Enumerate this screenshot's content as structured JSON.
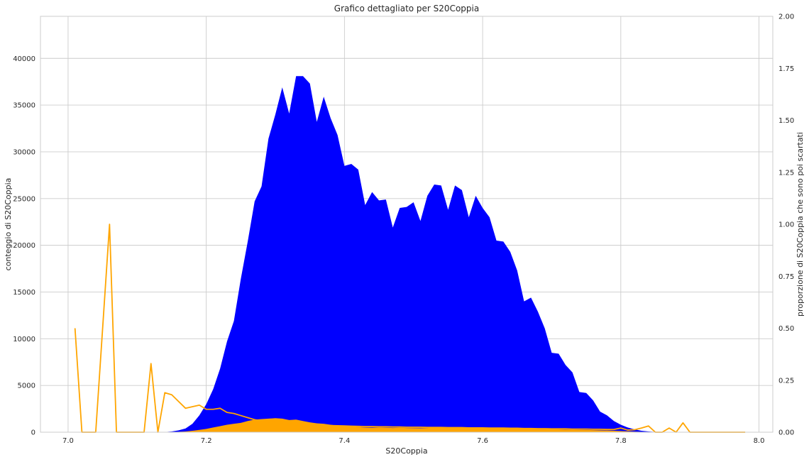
{
  "chart_data": {
    "type": "area",
    "title": "Grafico dettagliato per S20Coppia",
    "xlabel": "S20Coppia",
    "ylabel": "conteggio di S20Coppia",
    "y2label": "proporzione di S20Coppia che sono poi scartati",
    "xlim": [
      6.96,
      8.02
    ],
    "ylim": [
      0,
      44500
    ],
    "y2lim": [
      0,
      2.0
    ],
    "x_ticks": [
      "7.0",
      "7.2",
      "7.4",
      "7.6",
      "7.8",
      "8.0"
    ],
    "y_ticks": [
      "0",
      "5000",
      "10000",
      "15000",
      "20000",
      "25000",
      "30000",
      "35000",
      "40000"
    ],
    "y2_ticks": [
      "0.00",
      "0.25",
      "0.50",
      "0.75",
      "1.00",
      "1.25",
      "1.50",
      "1.75",
      "2.00"
    ],
    "grid": true,
    "series": [
      {
        "kind": "area",
        "axis": "left",
        "color": "#0000ff",
        "x": [
          7.14,
          7.15,
          7.16,
          7.17,
          7.18,
          7.19,
          7.2,
          7.21,
          7.22,
          7.23,
          7.24,
          7.25,
          7.26,
          7.27,
          7.28,
          7.29,
          7.3,
          7.31,
          7.32,
          7.33,
          7.34,
          7.35,
          7.36,
          7.37,
          7.38,
          7.39,
          7.4,
          7.41,
          7.42,
          7.43,
          7.44,
          7.45,
          7.46,
          7.47,
          7.48,
          7.49,
          7.5,
          7.51,
          7.52,
          7.53,
          7.54,
          7.55,
          7.56,
          7.57,
          7.58,
          7.59,
          7.6,
          7.61,
          7.62,
          7.63,
          7.64,
          7.65,
          7.66,
          7.67,
          7.68,
          7.69,
          7.7,
          7.71,
          7.72,
          7.73,
          7.74,
          7.75,
          7.76,
          7.77,
          7.78,
          7.79,
          7.8,
          7.81,
          7.82,
          7.83,
          7.84,
          7.85
        ],
        "values": [
          20,
          80,
          200,
          400,
          900,
          1800,
          3000,
          4600,
          6800,
          9700,
          11900,
          16400,
          20400,
          24700,
          26300,
          31400,
          34000,
          36900,
          34100,
          38100,
          38100,
          37300,
          33200,
          35900,
          33600,
          31800,
          28500,
          28700,
          28100,
          24300,
          25700,
          24800,
          24900,
          21900,
          24000,
          24100,
          24600,
          22600,
          25300,
          26500,
          26400,
          23800,
          26400,
          25900,
          23000,
          25300,
          24000,
          23000,
          20500,
          20400,
          19300,
          17300,
          14000,
          14400,
          12900,
          11100,
          8500,
          8400,
          7200,
          6400,
          4300,
          4200,
          3400,
          2200,
          1800,
          1200,
          800,
          500,
          300,
          150,
          80,
          30
        ]
      },
      {
        "kind": "area",
        "axis": "left",
        "color": "#ffa500",
        "x": [
          7.14,
          7.15,
          7.16,
          7.17,
          7.18,
          7.19,
          7.2,
          7.21,
          7.22,
          7.23,
          7.24,
          7.25,
          7.26,
          7.27,
          7.28,
          7.29,
          7.3,
          7.31,
          7.32,
          7.33,
          7.34,
          7.35,
          7.36,
          7.37,
          7.38,
          7.39,
          7.4,
          7.41,
          7.42,
          7.43,
          7.44,
          7.45,
          7.46,
          7.47,
          7.48,
          7.49,
          7.5,
          7.51,
          7.52,
          7.53,
          7.54,
          7.55,
          7.56,
          7.57,
          7.58,
          7.59,
          7.6,
          7.61,
          7.62,
          7.63,
          7.64,
          7.65,
          7.66,
          7.67,
          7.68,
          7.69,
          7.7,
          7.71,
          7.72,
          7.73,
          7.74,
          7.75,
          7.76,
          7.77,
          7.78,
          7.79,
          7.8,
          7.81,
          7.82,
          7.83,
          7.84,
          7.85
        ],
        "values": [
          5,
          20,
          40,
          80,
          150,
          250,
          350,
          500,
          650,
          800,
          900,
          1000,
          1200,
          1350,
          1400,
          1450,
          1500,
          1450,
          1300,
          1350,
          1200,
          1050,
          950,
          900,
          800,
          700,
          650,
          600,
          550,
          500,
          480,
          500,
          480,
          450,
          470,
          450,
          440,
          430,
          450,
          480,
          470,
          440,
          480,
          470,
          450,
          440,
          430,
          420,
          400,
          400,
          390,
          380,
          350,
          340,
          330,
          320,
          300,
          290,
          270,
          260,
          250,
          240,
          220,
          200,
          180,
          150,
          120,
          90,
          60,
          40,
          20,
          10
        ]
      },
      {
        "kind": "line",
        "axis": "right",
        "color": "#ffa500",
        "x": [
          7.01,
          7.02,
          7.04,
          7.06,
          7.07,
          7.11,
          7.12,
          7.13,
          7.14,
          7.15,
          7.17,
          7.19,
          7.2,
          7.21,
          7.22,
          7.23,
          7.24,
          7.25,
          7.26,
          7.27,
          7.28,
          7.29,
          7.3,
          7.31,
          7.32,
          7.33,
          7.34,
          7.35,
          7.36,
          7.37,
          7.38,
          7.39,
          7.4,
          7.41,
          7.42,
          7.43,
          7.44,
          7.45,
          7.46,
          7.47,
          7.48,
          7.49,
          7.5,
          7.51,
          7.52,
          7.53,
          7.54,
          7.55,
          7.56,
          7.57,
          7.58,
          7.59,
          7.6,
          7.61,
          7.62,
          7.63,
          7.64,
          7.65,
          7.66,
          7.67,
          7.68,
          7.69,
          7.7,
          7.71,
          7.72,
          7.73,
          7.74,
          7.75,
          7.76,
          7.77,
          7.78,
          7.79,
          7.8,
          7.81,
          7.82,
          7.83,
          7.84,
          7.85,
          7.86,
          7.87,
          7.88,
          7.89,
          7.9,
          7.92,
          7.94,
          7.96,
          7.98
        ],
        "values": [
          0.5,
          0.0,
          0.0,
          1.0,
          0.0,
          0.0,
          0.33,
          0.0,
          0.19,
          0.18,
          0.115,
          0.13,
          0.11,
          0.11,
          0.115,
          0.095,
          0.09,
          0.08,
          0.07,
          0.06,
          0.055,
          0.05,
          0.048,
          0.046,
          0.045,
          0.042,
          0.04,
          0.038,
          0.035,
          0.033,
          0.032,
          0.031,
          0.03,
          0.029,
          0.028,
          0.027,
          0.027,
          0.026,
          0.026,
          0.025,
          0.025,
          0.024,
          0.024,
          0.024,
          0.023,
          0.023,
          0.023,
          0.022,
          0.022,
          0.022,
          0.021,
          0.021,
          0.021,
          0.02,
          0.02,
          0.02,
          0.019,
          0.019,
          0.018,
          0.018,
          0.017,
          0.017,
          0.016,
          0.016,
          0.016,
          0.015,
          0.015,
          0.015,
          0.014,
          0.014,
          0.013,
          0.013,
          0.02,
          0.01,
          0.012,
          0.02,
          0.03,
          0.0,
          0.0,
          0.02,
          0.0,
          0.045,
          0.0,
          0.0,
          0.0,
          0.0,
          0.0
        ]
      }
    ]
  }
}
